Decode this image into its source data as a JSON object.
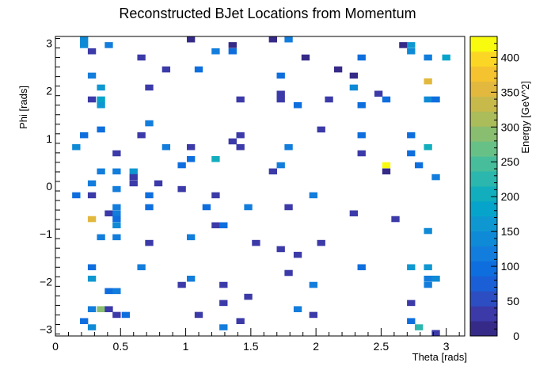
{
  "chart_data": {
    "type": "heatmap",
    "title": "Reconstructed BJet Locations from Momentum",
    "xlabel": "Theta [rads]",
    "ylabel": "Phi [rads]",
    "zlabel": "Energy [GeV^2]",
    "xlim": [
      0,
      3.14159
    ],
    "ylim": [
      -3.14159,
      3.14159
    ],
    "zlim": [
      0,
      430
    ],
    "x_ticks": [
      "0",
      "0.5",
      "1",
      "1.5",
      "2",
      "2.5",
      "3"
    ],
    "x_tick_values": [
      0,
      0.5,
      1,
      1.5,
      2,
      2.5,
      3
    ],
    "y_ticks": [
      "−3",
      "−2",
      "−1",
      "0",
      "1",
      "2",
      "3"
    ],
    "y_tick_values": [
      -3,
      -2,
      -1,
      0,
      1,
      2,
      3
    ],
    "z_ticks": [
      "0",
      "50",
      "100",
      "150",
      "200",
      "250",
      "300",
      "350",
      "400"
    ],
    "z_tick_values": [
      0,
      50,
      100,
      150,
      200,
      250,
      300,
      350,
      400
    ],
    "bins": {
      "nx": 50,
      "ny": 50
    },
    "palette": [
      "#352a87",
      "#3b3aa8",
      "#2c4ec2",
      "#1a5fd6",
      "#0e6ede",
      "#127ddc",
      "#0f8ad6",
      "#0f97d1",
      "#06a4ca",
      "#12aebd",
      "#2bb7ad",
      "#47bd9b",
      "#67c187",
      "#89be70",
      "#abbc5a",
      "#c8b94b",
      "#e2b93e",
      "#f5c230",
      "#fbd625",
      "#f9fb0e"
    ],
    "cells": [
      {
        "x": 0.22,
        "y": 3.08,
        "v": 130
      },
      {
        "x": 0.22,
        "y": 2.96,
        "v": 140
      },
      {
        "x": 0.28,
        "y": 2.83,
        "v": 25
      },
      {
        "x": 0.41,
        "y": 2.96,
        "v": 110
      },
      {
        "x": 0.66,
        "y": 2.7,
        "v": 40
      },
      {
        "x": 1.04,
        "y": 3.08,
        "v": 20
      },
      {
        "x": 1.23,
        "y": 2.83,
        "v": 110
      },
      {
        "x": 1.36,
        "y": 2.96,
        "v": 20
      },
      {
        "x": 1.36,
        "y": 2.83,
        "v": 90
      },
      {
        "x": 1.67,
        "y": 3.08,
        "v": 20
      },
      {
        "x": 1.79,
        "y": 3.08,
        "v": 120
      },
      {
        "x": 1.92,
        "y": 2.7,
        "v": 20
      },
      {
        "x": 2.35,
        "y": 2.7,
        "v": 90
      },
      {
        "x": 2.67,
        "y": 2.96,
        "v": 20
      },
      {
        "x": 2.73,
        "y": 2.83,
        "v": 140
      },
      {
        "x": 2.73,
        "y": 2.96,
        "v": 160
      },
      {
        "x": 2.86,
        "y": 2.7,
        "v": 120
      },
      {
        "x": 3.0,
        "y": 2.7,
        "v": 190
      },
      {
        "x": 0.28,
        "y": 2.32,
        "v": 110
      },
      {
        "x": 0.85,
        "y": 2.45,
        "v": 25
      },
      {
        "x": 1.1,
        "y": 2.45,
        "v": 90
      },
      {
        "x": 1.73,
        "y": 2.32,
        "v": 90
      },
      {
        "x": 2.17,
        "y": 2.45,
        "v": 20
      },
      {
        "x": 2.29,
        "y": 2.32,
        "v": 20
      },
      {
        "x": 0.35,
        "y": 2.07,
        "v": 170
      },
      {
        "x": 0.72,
        "y": 2.07,
        "v": 30
      },
      {
        "x": 2.29,
        "y": 2.07,
        "v": 130
      },
      {
        "x": 2.86,
        "y": 2.2,
        "v": 350
      },
      {
        "x": 0.28,
        "y": 1.82,
        "v": 25
      },
      {
        "x": 0.35,
        "y": 1.82,
        "v": 180
      },
      {
        "x": 0.35,
        "y": 1.7,
        "v": 170
      },
      {
        "x": 1.42,
        "y": 1.82,
        "v": 30
      },
      {
        "x": 1.73,
        "y": 1.94,
        "v": 25
      },
      {
        "x": 1.73,
        "y": 1.82,
        "v": 25
      },
      {
        "x": 1.86,
        "y": 1.7,
        "v": 90
      },
      {
        "x": 2.1,
        "y": 1.82,
        "v": 30
      },
      {
        "x": 2.35,
        "y": 1.7,
        "v": 90
      },
      {
        "x": 2.48,
        "y": 1.94,
        "v": 25
      },
      {
        "x": 2.54,
        "y": 1.82,
        "v": 90
      },
      {
        "x": 2.86,
        "y": 1.82,
        "v": 140
      },
      {
        "x": 2.92,
        "y": 1.82,
        "v": 90
      },
      {
        "x": 0.72,
        "y": 1.32,
        "v": 110
      },
      {
        "x": 0.35,
        "y": 1.19,
        "v": 90
      },
      {
        "x": 0.22,
        "y": 1.07,
        "v": 90
      },
      {
        "x": 0.66,
        "y": 1.07,
        "v": 30
      },
      {
        "x": 1.42,
        "y": 1.07,
        "v": 30
      },
      {
        "x": 1.36,
        "y": 0.94,
        "v": 25
      },
      {
        "x": 2.04,
        "y": 1.19,
        "v": 30
      },
      {
        "x": 2.35,
        "y": 1.07,
        "v": 90
      },
      {
        "x": 2.73,
        "y": 1.07,
        "v": 90
      },
      {
        "x": 0.16,
        "y": 0.82,
        "v": 140
      },
      {
        "x": 0.47,
        "y": 0.69,
        "v": 25
      },
      {
        "x": 0.85,
        "y": 0.82,
        "v": 110
      },
      {
        "x": 1.04,
        "y": 0.82,
        "v": 30
      },
      {
        "x": 1.04,
        "y": 0.57,
        "v": 90
      },
      {
        "x": 1.23,
        "y": 0.57,
        "v": 200
      },
      {
        "x": 1.42,
        "y": 0.82,
        "v": 30
      },
      {
        "x": 1.79,
        "y": 0.82,
        "v": 110
      },
      {
        "x": 2.35,
        "y": 0.69,
        "v": 25
      },
      {
        "x": 2.73,
        "y": 0.69,
        "v": 90
      },
      {
        "x": 2.86,
        "y": 0.82,
        "v": 200
      },
      {
        "x": 0.97,
        "y": 0.44,
        "v": 90
      },
      {
        "x": 1.73,
        "y": 0.44,
        "v": 110
      },
      {
        "x": 2.54,
        "y": 0.44,
        "v": 430
      },
      {
        "x": 2.54,
        "y": 0.31,
        "v": 20
      },
      {
        "x": 2.79,
        "y": 0.44,
        "v": 90
      },
      {
        "x": 0.35,
        "y": 0.31,
        "v": 110
      },
      {
        "x": 0.47,
        "y": 0.31,
        "v": 110
      },
      {
        "x": 0.6,
        "y": 0.31,
        "v": 170
      },
      {
        "x": 0.6,
        "y": 0.19,
        "v": 40
      },
      {
        "x": 0.6,
        "y": 0.06,
        "v": 30
      },
      {
        "x": 0.79,
        "y": 0.06,
        "v": 25
      },
      {
        "x": 1.67,
        "y": 0.31,
        "v": 25
      },
      {
        "x": 2.92,
        "y": 0.19,
        "v": 110
      },
      {
        "x": 0.28,
        "y": 0.06,
        "v": 110
      },
      {
        "x": 0.16,
        "y": -0.19,
        "v": 90
      },
      {
        "x": 0.28,
        "y": -0.19,
        "v": 30
      },
      {
        "x": 0.47,
        "y": -0.06,
        "v": 110
      },
      {
        "x": 0.72,
        "y": -0.19,
        "v": 90
      },
      {
        "x": 0.97,
        "y": -0.06,
        "v": 30
      },
      {
        "x": 1.23,
        "y": -0.19,
        "v": 25
      },
      {
        "x": 1.98,
        "y": -0.19,
        "v": 110
      },
      {
        "x": 0.47,
        "y": -0.44,
        "v": 110
      },
      {
        "x": 0.41,
        "y": -0.57,
        "v": 30
      },
      {
        "x": 0.47,
        "y": -0.57,
        "v": 110
      },
      {
        "x": 0.47,
        "y": -0.69,
        "v": 90
      },
      {
        "x": 0.72,
        "y": -0.44,
        "v": 90
      },
      {
        "x": 0.28,
        "y": -0.69,
        "v": 350
      },
      {
        "x": 0.47,
        "y": -0.82,
        "v": 130
      },
      {
        "x": 1.16,
        "y": -0.44,
        "v": 90
      },
      {
        "x": 1.48,
        "y": -0.44,
        "v": 110
      },
      {
        "x": 1.79,
        "y": -0.44,
        "v": 25
      },
      {
        "x": 2.29,
        "y": -0.57,
        "v": 30
      },
      {
        "x": 2.61,
        "y": -0.69,
        "v": 25
      },
      {
        "x": 1.23,
        "y": -0.82,
        "v": 25
      },
      {
        "x": 1.29,
        "y": -0.82,
        "v": 90
      },
      {
        "x": 0.35,
        "y": -1.07,
        "v": 110
      },
      {
        "x": 0.47,
        "y": -1.07,
        "v": 110
      },
      {
        "x": 0.72,
        "y": -1.19,
        "v": 30
      },
      {
        "x": 1.04,
        "y": -1.07,
        "v": 110
      },
      {
        "x": 1.54,
        "y": -1.19,
        "v": 25
      },
      {
        "x": 1.73,
        "y": -1.32,
        "v": 30
      },
      {
        "x": 1.86,
        "y": -1.44,
        "v": 30
      },
      {
        "x": 2.04,
        "y": -1.19,
        "v": 30
      },
      {
        "x": 2.86,
        "y": -0.94,
        "v": 140
      },
      {
        "x": 0.28,
        "y": -1.7,
        "v": 90
      },
      {
        "x": 0.66,
        "y": -1.7,
        "v": 110
      },
      {
        "x": 1.79,
        "y": -1.82,
        "v": 25
      },
      {
        "x": 2.35,
        "y": -1.7,
        "v": 90
      },
      {
        "x": 2.73,
        "y": -1.7,
        "v": 170
      },
      {
        "x": 2.86,
        "y": -1.7,
        "v": 170
      },
      {
        "x": 0.28,
        "y": -1.94,
        "v": 170
      },
      {
        "x": 0.97,
        "y": -2.07,
        "v": 30
      },
      {
        "x": 1.04,
        "y": -1.94,
        "v": 110
      },
      {
        "x": 1.29,
        "y": -2.07,
        "v": 30
      },
      {
        "x": 1.98,
        "y": -2.07,
        "v": 110
      },
      {
        "x": 2.86,
        "y": -1.94,
        "v": 110
      },
      {
        "x": 2.92,
        "y": -1.94,
        "v": 140
      },
      {
        "x": 2.86,
        "y": -2.07,
        "v": 110
      },
      {
        "x": 0.41,
        "y": -2.2,
        "v": 90
      },
      {
        "x": 0.47,
        "y": -2.2,
        "v": 110
      },
      {
        "x": 1.48,
        "y": -2.32,
        "v": 30
      },
      {
        "x": 1.29,
        "y": -2.45,
        "v": 30
      },
      {
        "x": 0.28,
        "y": -2.58,
        "v": 110
      },
      {
        "x": 0.35,
        "y": -2.58,
        "v": 300
      },
      {
        "x": 0.41,
        "y": -2.58,
        "v": 30
      },
      {
        "x": 0.47,
        "y": -2.7,
        "v": 30
      },
      {
        "x": 0.54,
        "y": -2.7,
        "v": 90
      },
      {
        "x": 1.1,
        "y": -2.7,
        "v": 30
      },
      {
        "x": 1.86,
        "y": -2.58,
        "v": 110
      },
      {
        "x": 2.73,
        "y": -2.45,
        "v": 30
      },
      {
        "x": 0.22,
        "y": -2.83,
        "v": 90
      },
      {
        "x": 0.28,
        "y": -2.96,
        "v": 140
      },
      {
        "x": 1.29,
        "y": -2.96,
        "v": 110
      },
      {
        "x": 1.42,
        "y": -2.83,
        "v": 30
      },
      {
        "x": 1.98,
        "y": -2.7,
        "v": 30
      },
      {
        "x": 2.73,
        "y": -2.83,
        "v": 90
      },
      {
        "x": 2.79,
        "y": -2.96,
        "v": 230
      },
      {
        "x": 2.92,
        "y": -3.08,
        "v": 30
      }
    ]
  }
}
